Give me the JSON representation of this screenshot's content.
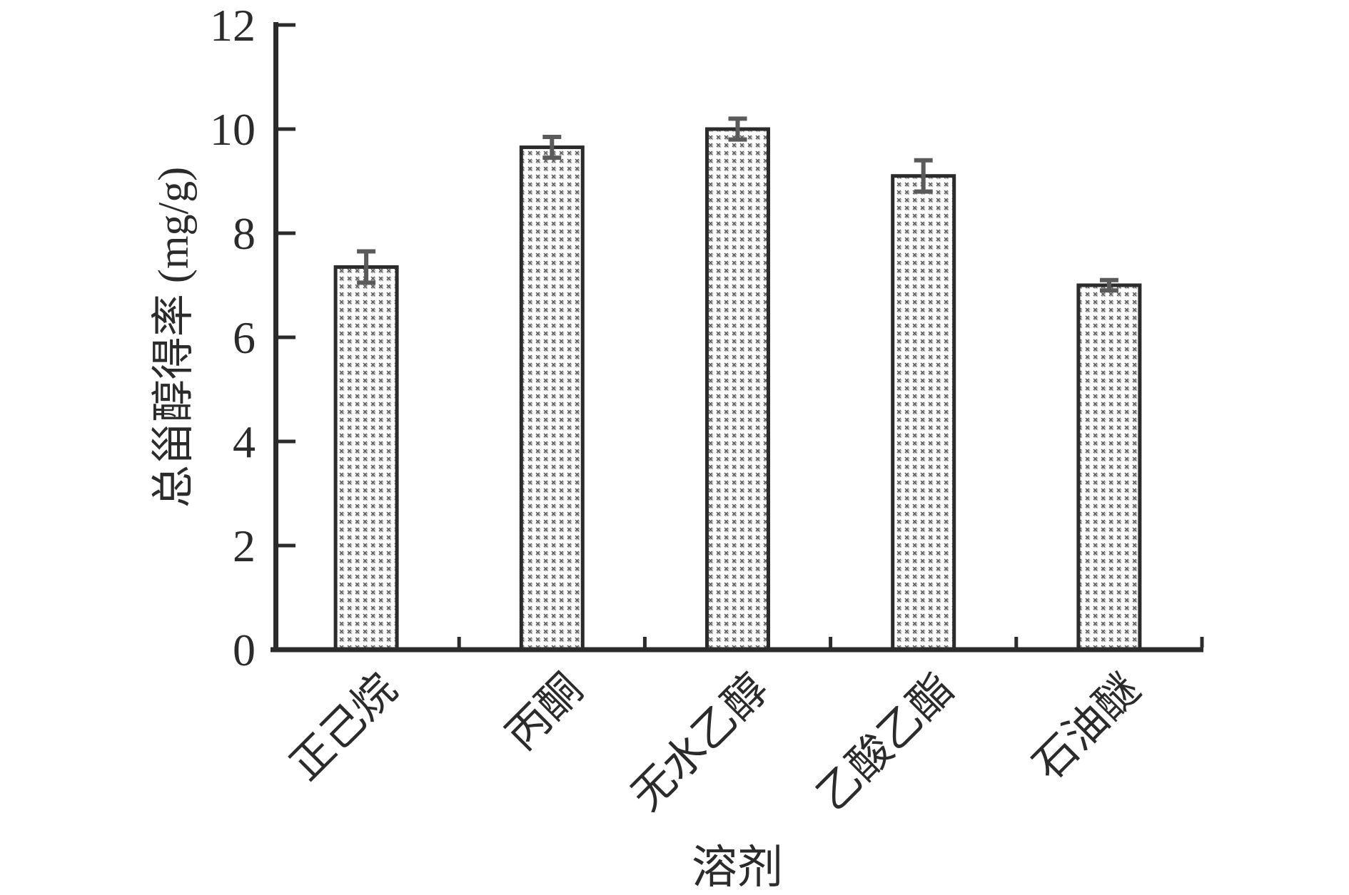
{
  "figure": {
    "background": "#ffffff",
    "axis_color": "#2b2b2b",
    "text_color": "#2b2b2b",
    "bar_fill": "#ffffff",
    "bar_border": "#2b2b2b",
    "hatch_dark": "#5f5f5f",
    "hatch_light": "#bdbdbd",
    "error_bar_color": "#5a5a5a"
  },
  "chart_data": {
    "type": "bar",
    "title": "",
    "xlabel": "溶剂",
    "ylabel": "总甾醇得率 (mg/g)",
    "categories": [
      "正己烷",
      "丙酮",
      "无水乙醇",
      "乙酸乙酯",
      "石油醚"
    ],
    "values": [
      7.35,
      9.65,
      10.0,
      9.1,
      7.0
    ],
    "errors": [
      0.3,
      0.2,
      0.2,
      0.3,
      0.1
    ],
    "ylim": [
      0,
      12
    ],
    "yticks": [
      0,
      2,
      4,
      6,
      8,
      10,
      12
    ],
    "ytick_labels": [
      "0",
      "2",
      "4",
      "6",
      "8",
      "10",
      "12"
    ],
    "grid": false,
    "legend": null,
    "bar_pattern": "x-hatch",
    "error_bars": "plus-minus-caps",
    "x_tick_style": "minor ticks at category boundaries, labels rotated 45deg",
    "y_tick_style": "inward major ticks"
  }
}
